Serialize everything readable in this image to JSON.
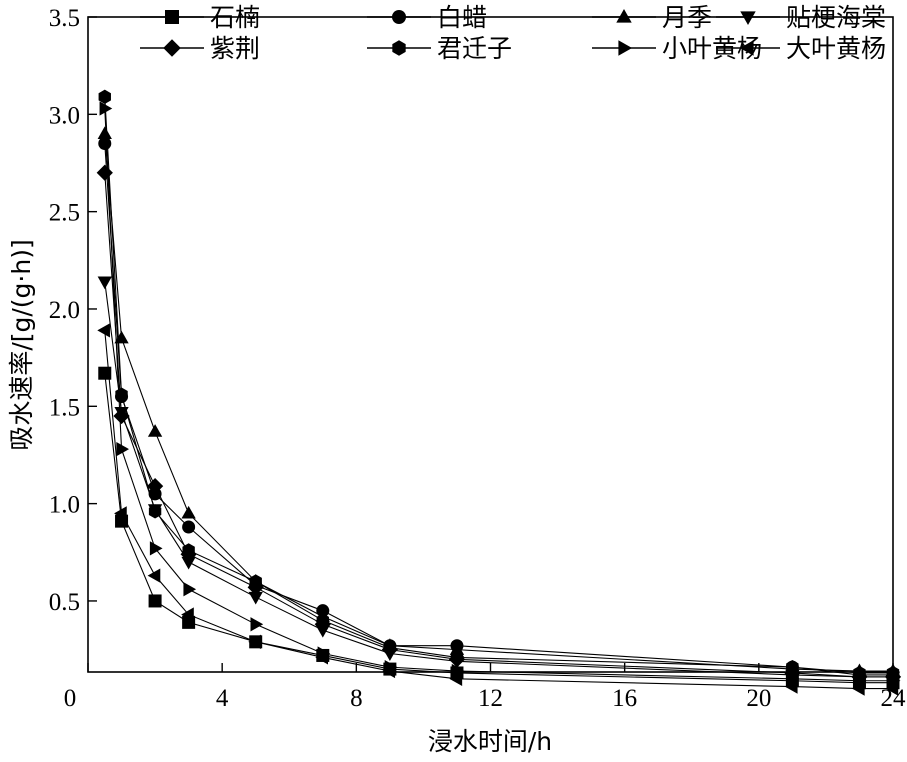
{
  "chart_data": {
    "type": "line",
    "title": "",
    "xlabel": "浸水时间/h",
    "ylabel": "吸水速率/[g/(g·h)]",
    "xlim": [
      0,
      24
    ],
    "ylim": [
      0,
      3.5
    ],
    "x_ticks": [
      "0",
      "4",
      "8",
      "12",
      "16",
      "20",
      "24"
    ],
    "y_ticks": [
      "0.5",
      "1.0",
      "1.5",
      "2.0",
      "2.5",
      "3.0",
      "3.5"
    ],
    "grid": false,
    "legend_position": "top",
    "series": [
      {
        "name": "石楠",
        "marker": "square",
        "points": [
          [
            0.5,
            1.67
          ],
          [
            1,
            0.91
          ],
          [
            2,
            0.5
          ],
          [
            3,
            0.39
          ],
          [
            5,
            0.29
          ],
          [
            7,
            0.22
          ],
          [
            9,
            0.15
          ],
          [
            11,
            0.13
          ],
          [
            21,
            0.09
          ],
          [
            23,
            0.08
          ],
          [
            24,
            0.08
          ]
        ]
      },
      {
        "name": "白蜡",
        "marker": "circle",
        "points": [
          [
            0.5,
            2.85
          ],
          [
            1,
            1.55
          ],
          [
            2,
            1.05
          ],
          [
            3,
            0.88
          ],
          [
            5,
            0.58
          ],
          [
            7,
            0.45
          ],
          [
            9,
            0.27
          ],
          [
            11,
            0.27
          ],
          [
            21,
            0.16
          ],
          [
            23,
            0.12
          ],
          [
            24,
            0.12
          ]
        ]
      },
      {
        "name": "月季",
        "marker": "triangle-up",
        "points": [
          [
            0.5,
            2.9
          ],
          [
            1,
            1.85
          ],
          [
            2,
            1.37
          ],
          [
            3,
            0.95
          ],
          [
            5,
            0.6
          ],
          [
            7,
            0.42
          ],
          [
            9,
            0.27
          ],
          [
            11,
            0.25
          ],
          [
            21,
            0.15
          ],
          [
            23,
            0.14
          ],
          [
            24,
            0.14
          ]
        ]
      },
      {
        "name": "贴梗海棠",
        "marker": "triangle-down",
        "points": [
          [
            0.5,
            2.14
          ],
          [
            1,
            1.47
          ],
          [
            2,
            0.97
          ],
          [
            3,
            0.7
          ],
          [
            5,
            0.52
          ],
          [
            7,
            0.35
          ],
          [
            9,
            0.23
          ],
          [
            11,
            0.19
          ],
          [
            21,
            0.12
          ],
          [
            23,
            0.11
          ],
          [
            24,
            0.11
          ]
        ]
      },
      {
        "name": "紫荆",
        "marker": "diamond",
        "points": [
          [
            0.5,
            2.7
          ],
          [
            1,
            1.45
          ],
          [
            2,
            1.09
          ],
          [
            3,
            0.74
          ],
          [
            5,
            0.57
          ],
          [
            7,
            0.38
          ],
          [
            9,
            0.25
          ],
          [
            11,
            0.2
          ],
          [
            21,
            0.13
          ],
          [
            23,
            0.11
          ],
          [
            24,
            0.11
          ]
        ]
      },
      {
        "name": "君迁子",
        "marker": "hexagon",
        "points": [
          [
            0.5,
            3.09
          ],
          [
            1,
            1.56
          ],
          [
            2,
            0.96
          ],
          [
            3,
            0.76
          ],
          [
            5,
            0.6
          ],
          [
            7,
            0.4
          ],
          [
            9,
            0.26
          ],
          [
            11,
            0.21
          ],
          [
            21,
            0.16
          ],
          [
            23,
            0.13
          ],
          [
            24,
            0.13
          ]
        ]
      },
      {
        "name": "小叶黄杨",
        "marker": "triangle-right",
        "points": [
          [
            0.5,
            3.03
          ],
          [
            1,
            1.28
          ],
          [
            2,
            0.77
          ],
          [
            3,
            0.56
          ],
          [
            5,
            0.38
          ],
          [
            7,
            0.23
          ],
          [
            9,
            0.16
          ],
          [
            11,
            0.14
          ],
          [
            21,
            0.1
          ],
          [
            23,
            0.09
          ],
          [
            24,
            0.09
          ]
        ]
      },
      {
        "name": "大叶黄杨",
        "marker": "triangle-left",
        "points": [
          [
            0.5,
            1.89
          ],
          [
            1,
            0.95
          ],
          [
            2,
            0.63
          ],
          [
            3,
            0.43
          ],
          [
            5,
            0.29
          ],
          [
            7,
            0.21
          ],
          [
            9,
            0.14
          ],
          [
            11,
            0.1
          ],
          [
            21,
            0.06
          ],
          [
            23,
            0.05
          ],
          [
            24,
            0.05
          ]
        ]
      }
    ]
  }
}
